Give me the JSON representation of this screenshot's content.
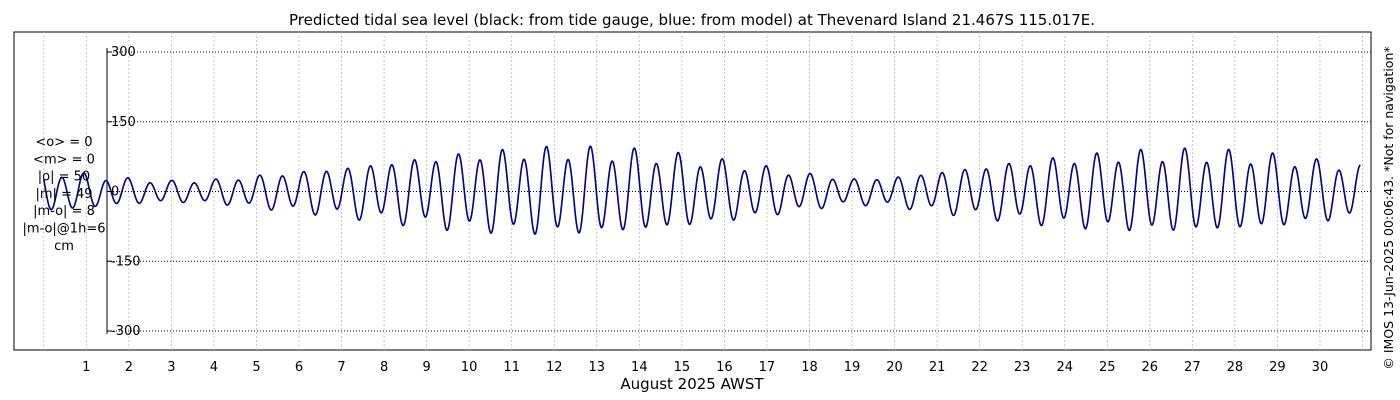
{
  "chart_data": {
    "type": "line",
    "title": "Predicted tidal sea level (black: from tide gauge, blue: from model) at Thevenard Island 21.467S 115.017E.",
    "xlabel": "August 2025 AWST",
    "ylabel": "",
    "x_unit": "day of August 2025",
    "ylim": [
      -300,
      300
    ],
    "xlim": [
      -0.7,
      31.2
    ],
    "yticks": [
      300,
      150,
      0,
      -150,
      -300
    ],
    "xticks": [
      1,
      2,
      3,
      4,
      5,
      6,
      7,
      8,
      9,
      10,
      11,
      12,
      13,
      14,
      15,
      16,
      17,
      18,
      19,
      20,
      21,
      22,
      23,
      24,
      25,
      26,
      27,
      28,
      29,
      30
    ],
    "grid": true,
    "stats_lines": [
      "<o> = 0",
      "<m> = 0",
      "|o| = 50",
      "|m| = 49",
      "|m-o| = 8",
      "|m-o|@1h=6",
      "cm"
    ],
    "credit": "© IMOS 13-Jun-2025 00:06:43. *Not for navigation*",
    "series": [
      {
        "color": "#000000",
        "x_start": 0.0,
        "x_end": 30.95,
        "amplitude": [
          50,
          40,
          30,
          25,
          28,
          38,
          48,
          58,
          70,
          82,
          92,
          98,
          102,
          100,
          95,
          85,
          72,
          58,
          42,
          30,
          35,
          48,
          60,
          72,
          82,
          90,
          95,
          96,
          92,
          84,
          72,
          60
        ]
      },
      {
        "color": "#0000cc",
        "x_start": 0.0,
        "x_end": 30.95,
        "amplitude": [
          50,
          40,
          30,
          25,
          28,
          38,
          48,
          58,
          70,
          82,
          92,
          98,
          102,
          100,
          95,
          85,
          72,
          58,
          42,
          30,
          35,
          48,
          60,
          72,
          82,
          90,
          95,
          96,
          92,
          84,
          72,
          60
        ]
      }
    ]
  }
}
